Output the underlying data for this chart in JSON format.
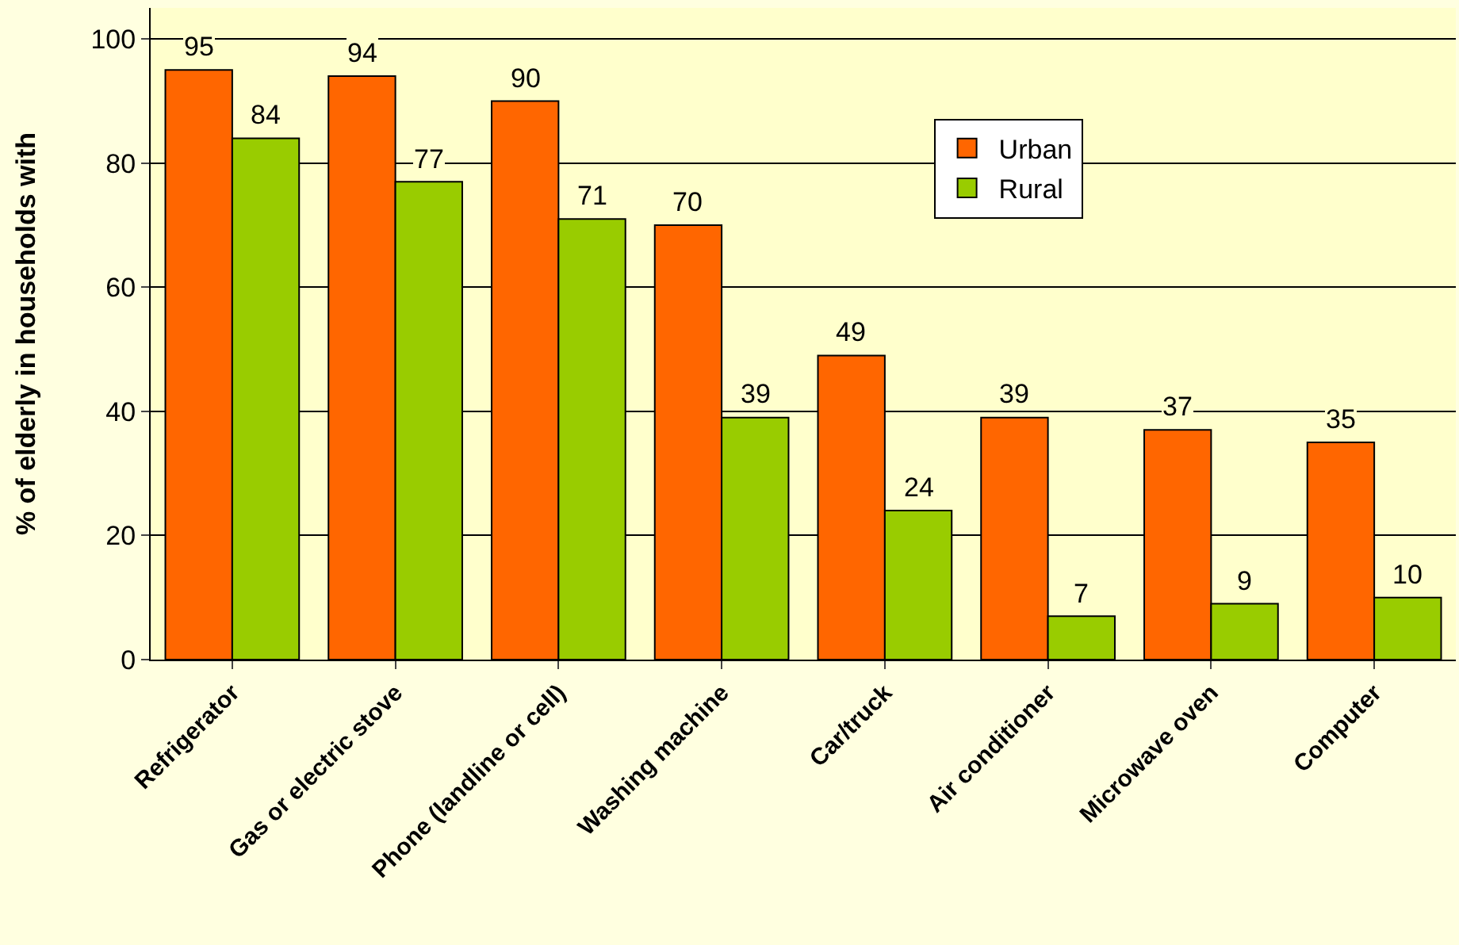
{
  "chart_data": {
    "type": "bar",
    "ylabel": "% of elderly in households with",
    "categories": [
      "Refrigerator",
      "Gas or electric stove",
      "Phone (landline or cell)",
      "Washing machine",
      "Car/truck",
      "Air conditioner",
      "Microwave oven",
      "Computer"
    ],
    "series": [
      {
        "name": "Urban",
        "color": "#ff6600",
        "values": [
          95,
          94,
          90,
          70,
          49,
          39,
          37,
          35
        ]
      },
      {
        "name": "Rural",
        "color": "#99cc00",
        "values": [
          84,
          77,
          71,
          39,
          24,
          7,
          9,
          10
        ]
      }
    ],
    "ylim": [
      0,
      105
    ],
    "yticks": [
      0,
      20,
      40,
      60,
      80,
      100
    ],
    "grid": "y",
    "legend": "top right",
    "data_labels": true
  }
}
